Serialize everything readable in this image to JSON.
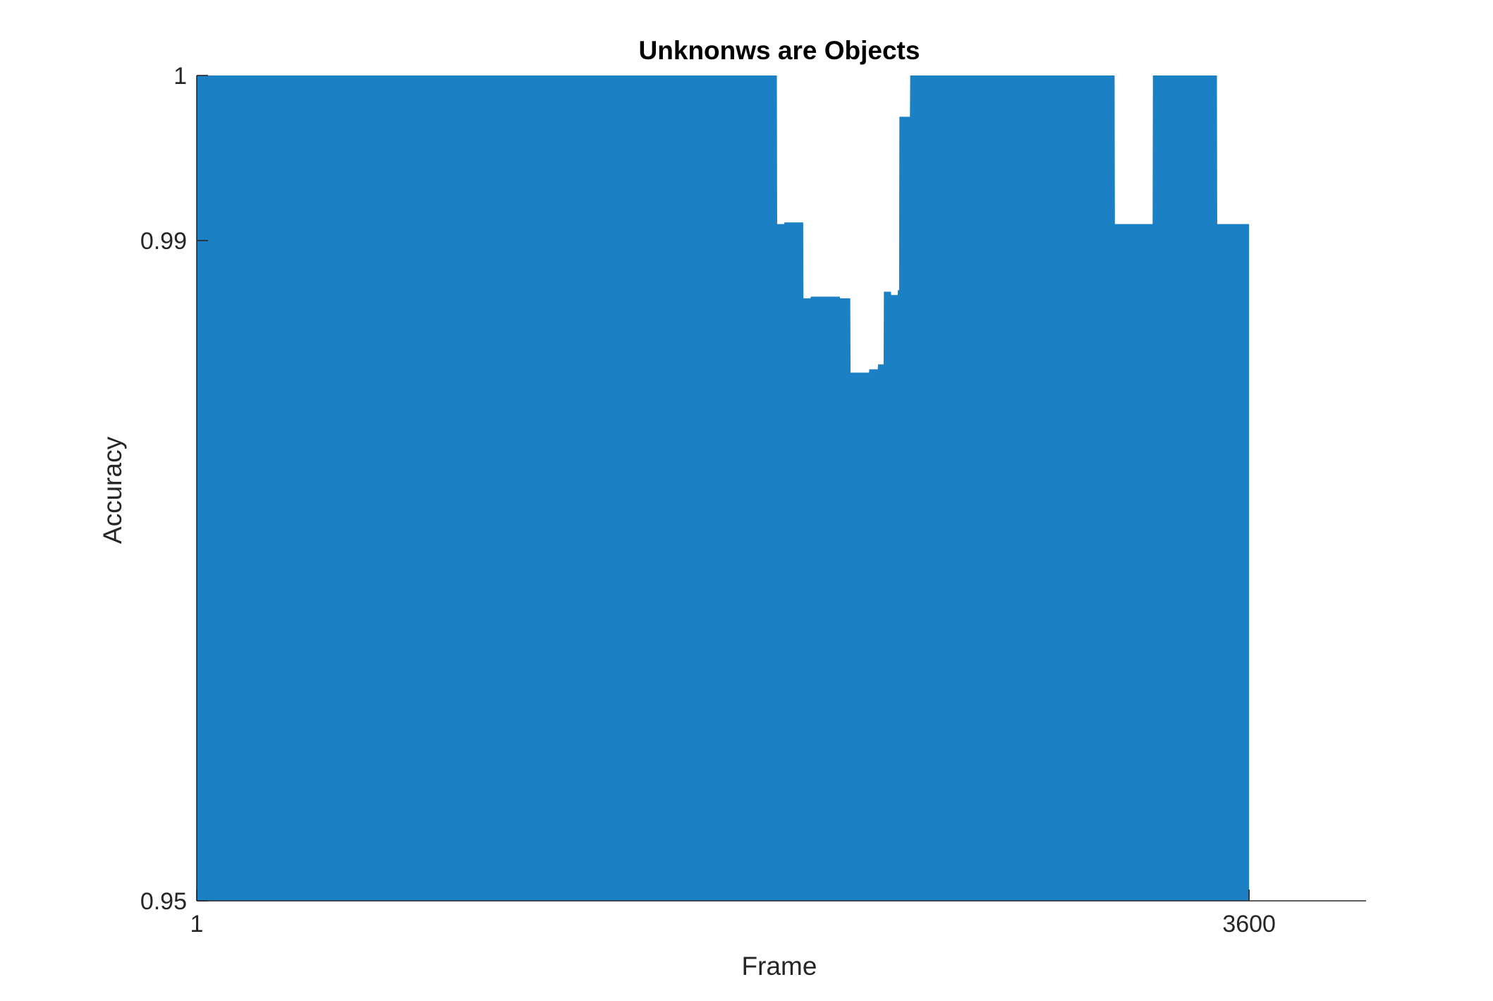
{
  "chart_data": {
    "type": "area",
    "title": "Unknonws are Objects",
    "xlabel": "Frame",
    "ylabel": "Accuracy",
    "xlim": [
      1,
      4000
    ],
    "ylim": [
      0.95,
      1
    ],
    "x_ticks": [
      1,
      3600
    ],
    "y_ticks": [
      0.95,
      0.99,
      1
    ],
    "x_tick_labels": [
      "1",
      "3600"
    ],
    "y_tick_labels": [
      "0.95",
      "0.99",
      "1"
    ],
    "series_color": "#1b80c4",
    "grid": false,
    "series": [
      {
        "x": [
          1,
          1985,
          1986,
          2010,
          2011,
          2075,
          2076,
          2100,
          2101,
          2200,
          2201,
          2236,
          2237,
          2300,
          2301,
          2330,
          2331,
          2350,
          2351,
          2375,
          2376,
          2398,
          2399,
          2403,
          2404,
          2440,
          2441,
          3140,
          3141,
          3270,
          3271,
          3490,
          3491,
          3595,
          3600
        ],
        "y": [
          1,
          1,
          0.991,
          0.991,
          0.9911,
          0.9911,
          0.9865,
          0.9865,
          0.9866,
          0.9866,
          0.9865,
          0.9865,
          0.982,
          0.982,
          0.9822,
          0.9822,
          0.9825,
          0.9825,
          0.9869,
          0.9869,
          0.9867,
          0.9867,
          0.987,
          0.987,
          0.9975,
          0.9975,
          1,
          1,
          0.991,
          0.991,
          1,
          1,
          0.991,
          0.991,
          0.991
        ]
      }
    ]
  }
}
